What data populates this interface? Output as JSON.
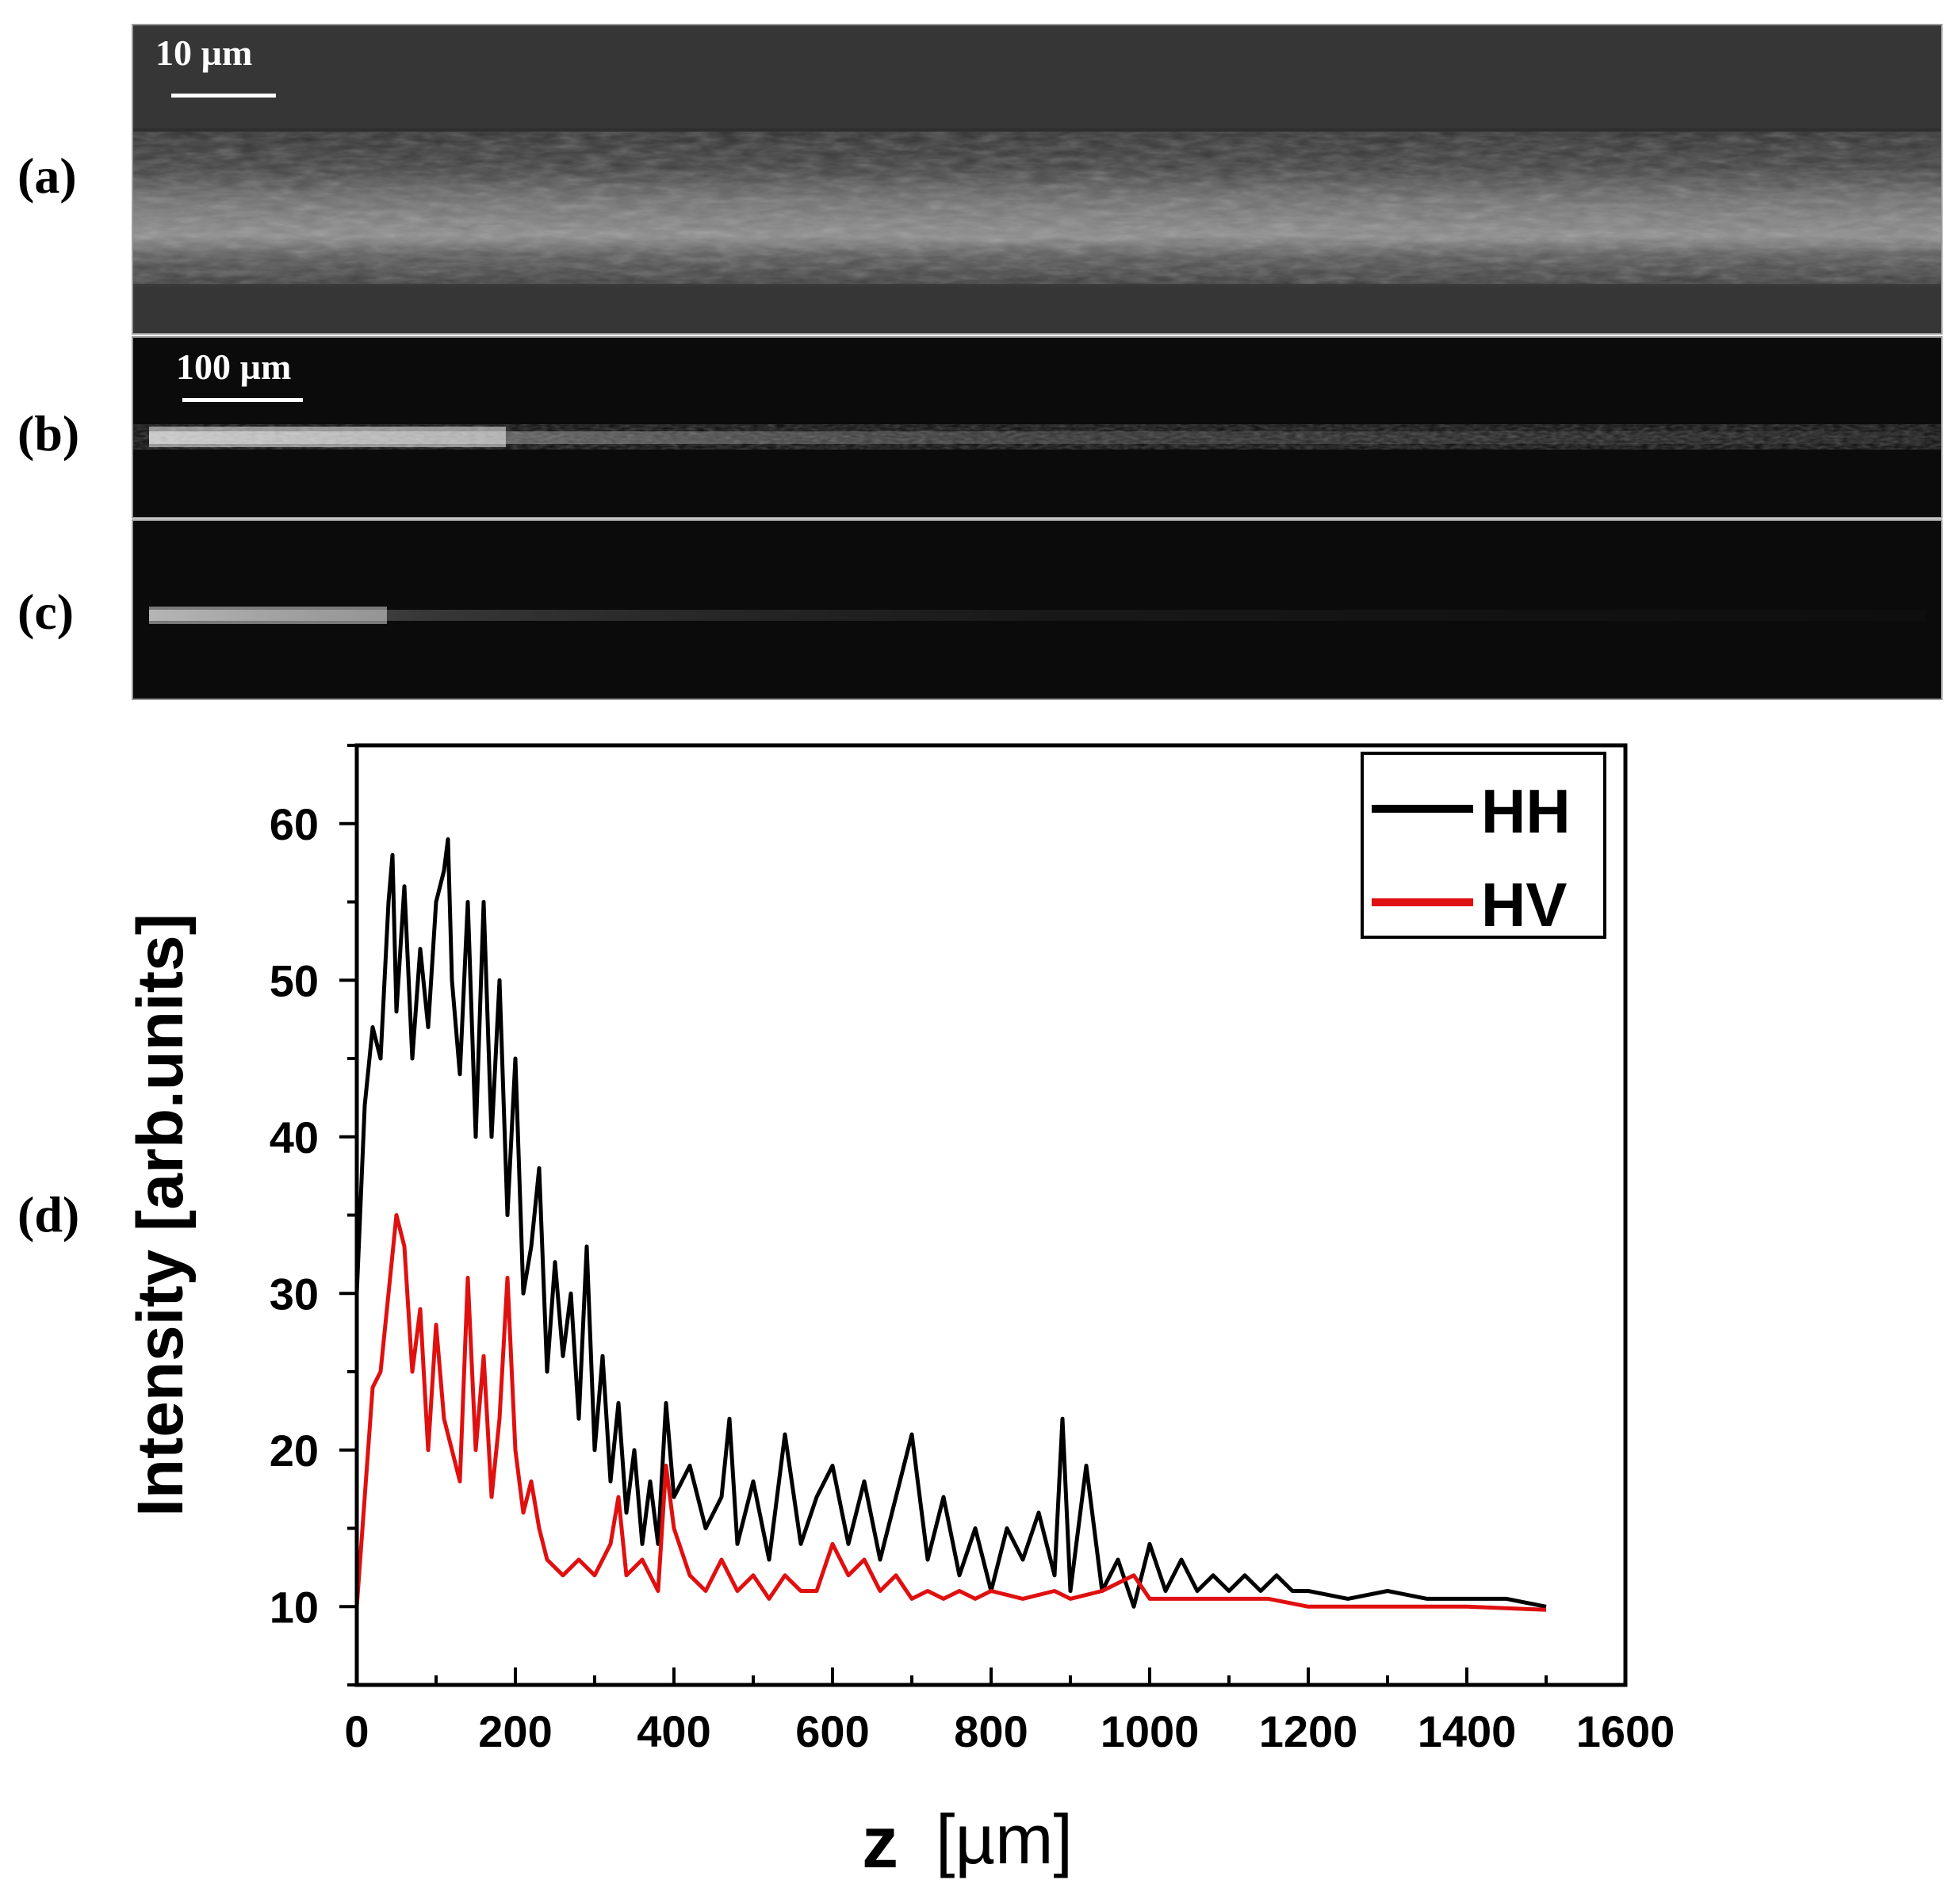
{
  "panels": {
    "a": {
      "label": "(a)",
      "scale_bar": "10 µm"
    },
    "b": {
      "label": "(b)",
      "scale_bar": "100 µm"
    },
    "c": {
      "label": "(c)"
    },
    "d": {
      "label": "(d)"
    }
  },
  "colors": {
    "hh": "#000000",
    "hv": "#e01010"
  },
  "chart_data": {
    "type": "line",
    "title": "",
    "xlabel": "z",
    "xlabel_unit": "[µm]",
    "ylabel": "Intensity [arb.units]",
    "xlim": [
      0,
      1600
    ],
    "ylim": [
      5,
      65
    ],
    "xticks": [
      0,
      200,
      400,
      600,
      800,
      1000,
      1200,
      1400,
      1600
    ],
    "yticks": [
      10,
      20,
      30,
      40,
      50,
      60
    ],
    "legend_position": "top-right",
    "series": [
      {
        "name": "HH",
        "color": "#000000",
        "x": [
          0,
          10,
          20,
          30,
          40,
          45,
          50,
          60,
          70,
          80,
          90,
          100,
          110,
          115,
          120,
          130,
          140,
          150,
          160,
          170,
          180,
          190,
          200,
          210,
          220,
          230,
          240,
          250,
          260,
          270,
          280,
          290,
          300,
          310,
          320,
          330,
          340,
          350,
          360,
          370,
          380,
          390,
          400,
          420,
          440,
          460,
          470,
          480,
          500,
          520,
          540,
          560,
          580,
          600,
          620,
          640,
          660,
          680,
          700,
          720,
          740,
          760,
          780,
          800,
          820,
          840,
          860,
          880,
          890,
          900,
          920,
          940,
          960,
          980,
          1000,
          1020,
          1040,
          1060,
          1080,
          1100,
          1120,
          1140,
          1160,
          1180,
          1200,
          1250,
          1300,
          1350,
          1400,
          1450,
          1500
        ],
        "y": [
          30,
          42,
          47,
          45,
          55,
          58,
          48,
          56,
          45,
          52,
          47,
          55,
          57,
          59,
          50,
          44,
          55,
          40,
          55,
          40,
          50,
          35,
          45,
          30,
          33,
          38,
          25,
          32,
          26,
          30,
          22,
          33,
          20,
          26,
          18,
          23,
          16,
          20,
          14,
          18,
          14,
          23,
          17,
          19,
          15,
          17,
          22,
          14,
          18,
          13,
          21,
          14,
          17,
          19,
          14,
          18,
          13,
          17,
          21,
          13,
          17,
          12,
          15,
          11,
          15,
          13,
          16,
          12,
          22,
          11,
          19,
          11,
          13,
          10,
          14,
          11,
          13,
          11,
          12,
          11,
          12,
          11,
          12,
          11,
          11,
          10.5,
          11,
          10.5,
          10.5,
          10.5,
          10
        ]
      },
      {
        "name": "HV",
        "color": "#e01010",
        "x": [
          0,
          10,
          20,
          30,
          40,
          50,
          60,
          70,
          80,
          90,
          100,
          110,
          120,
          130,
          140,
          150,
          160,
          170,
          180,
          190,
          200,
          210,
          220,
          230,
          240,
          260,
          280,
          300,
          320,
          330,
          340,
          360,
          380,
          390,
          400,
          420,
          440,
          460,
          480,
          500,
          520,
          540,
          560,
          580,
          600,
          620,
          640,
          660,
          680,
          700,
          720,
          740,
          760,
          780,
          800,
          840,
          880,
          900,
          940,
          980,
          1000,
          1050,
          1100,
          1150,
          1200,
          1300,
          1400,
          1500
        ],
        "y": [
          10,
          17,
          24,
          25,
          30,
          35,
          33,
          25,
          29,
          20,
          28,
          22,
          20,
          18,
          31,
          20,
          26,
          17,
          22,
          31,
          20,
          16,
          18,
          15,
          13,
          12,
          13,
          12,
          14,
          17,
          12,
          13,
          11,
          19,
          15,
          12,
          11,
          13,
          11,
          12,
          10.5,
          12,
          11,
          11,
          14,
          12,
          13,
          11,
          12,
          10.5,
          11,
          10.5,
          11,
          10.5,
          11,
          10.5,
          11,
          10.5,
          11,
          12,
          10.5,
          10.5,
          10.5,
          10.5,
          10,
          10,
          10,
          9.8
        ]
      }
    ]
  }
}
